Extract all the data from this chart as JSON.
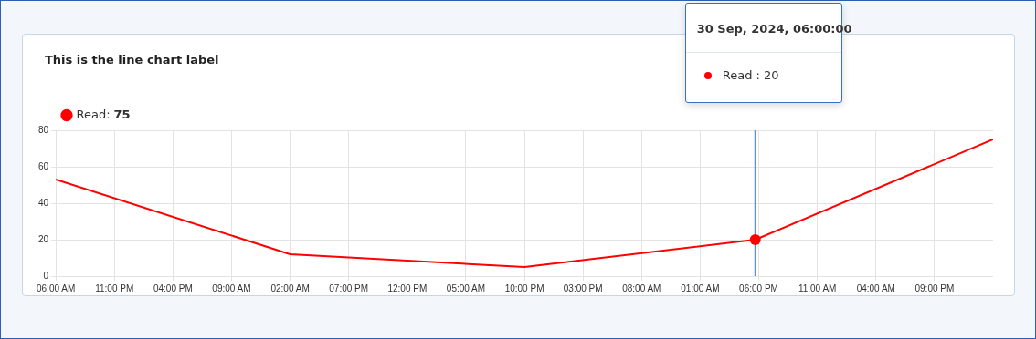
{
  "chart_data": {
    "type": "line",
    "title": "This is the line chart label",
    "x": [
      "2024-09-22T06:00",
      "2024-09-25T02:00",
      "2024-09-27T22:00",
      "2024-09-30T17:00",
      "2024-10-03T14:00"
    ],
    "series": [
      {
        "name": "Read:",
        "color": "#ff0000",
        "values": [
          53,
          12,
          5,
          20,
          75
        ]
      }
    ],
    "xlim": [
      "2024-09-22T06:00",
      "2024-10-03T14:00"
    ],
    "xticks": [
      {
        "value": "2024-09-22T06:00",
        "label": "06:00 AM"
      },
      {
        "value": "2024-09-22T23:00",
        "label": "11:00 PM"
      },
      {
        "value": "2024-09-23T16:00",
        "label": "04:00 PM"
      },
      {
        "value": "2024-09-24T09:00",
        "label": "09:00 AM"
      },
      {
        "value": "2024-09-25T02:00",
        "label": "02:00 AM"
      },
      {
        "value": "2024-09-25T19:00",
        "label": "07:00 PM"
      },
      {
        "value": "2024-09-26T12:00",
        "label": "12:00 PM"
      },
      {
        "value": "2024-09-27T05:00",
        "label": "05:00 AM"
      },
      {
        "value": "2024-09-27T22:00",
        "label": "10:00 PM"
      },
      {
        "value": "2024-09-28T15:00",
        "label": "03:00 PM"
      },
      {
        "value": "2024-09-29T08:00",
        "label": "08:00 AM"
      },
      {
        "value": "2024-09-30T01:00",
        "label": "01:00 AM"
      },
      {
        "value": "2024-09-30T18:00",
        "label": "06:00 PM"
      },
      {
        "value": "2024-10-01T11:00",
        "label": "11:00 AM"
      },
      {
        "value": "2024-10-02T04:00",
        "label": "04:00 AM"
      },
      {
        "value": "2024-10-02T21:00",
        "label": "09:00 PM"
      }
    ],
    "ylim": [
      0,
      80
    ],
    "yticks": [
      0,
      20,
      40,
      60,
      80
    ],
    "grid": true,
    "legend": "top left",
    "marker": "none",
    "line_style": "solid",
    "ref_lines": [
      {
        "axis": "x",
        "value": "2024-09-30T17:00",
        "label": null,
        "color": "#5b8fd6"
      }
    ],
    "annotations": [
      "75",
      "30 Sep, 2024, 06:00:00",
      "Read : 20"
    ]
  }
}
